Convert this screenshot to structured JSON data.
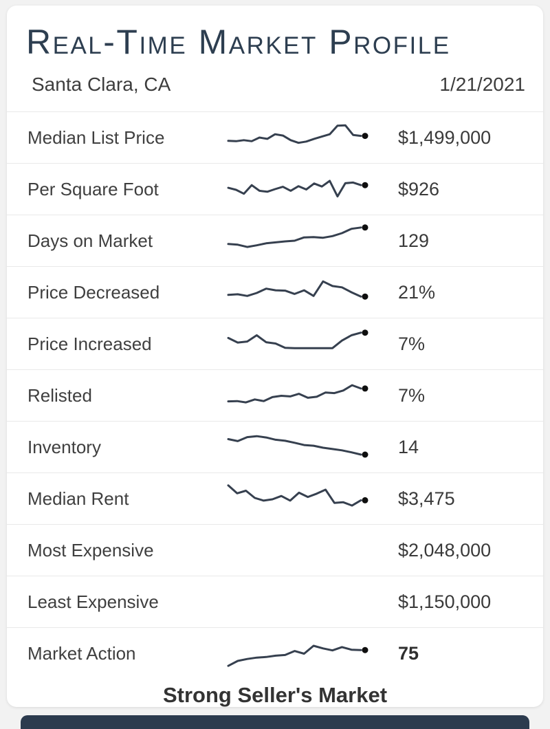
{
  "colors": {
    "page_background": "#f2f2f2",
    "card_background": "#ffffff",
    "title_text": "#2d3e50",
    "label_text": "#3f3f3f",
    "value_text": "#3a3a3a",
    "divider": "#e9e9e9",
    "sparkline_stroke": "#36404f",
    "sparkline_dot": "#0f0f0f",
    "bottom_bar": "#2c3b4e"
  },
  "chart_data": {
    "type": "table",
    "title": "Real-Time Market Profile",
    "location": "Santa Clara, CA",
    "date": "1/21/2021",
    "footer": "Strong Seller's Market",
    "sparkline_note": "sparkline values are normalized 0-100, 0 = top of mini-chart, rightmost point marked with dot",
    "rows": [
      {
        "label": "Median List Price",
        "value": "$1,499,000",
        "emphasis": false,
        "sparkline": [
          60,
          61,
          58,
          61,
          50,
          54,
          40,
          44,
          58,
          66,
          62,
          54,
          47,
          40,
          14,
          13,
          42,
          45
        ]
      },
      {
        "label": "Per Square Foot",
        "value": "$926",
        "emphasis": false,
        "sparkline": [
          46,
          52,
          64,
          38,
          55,
          58,
          50,
          43,
          55,
          41,
          51,
          33,
          42,
          25,
          72,
          32,
          30,
          38
        ]
      },
      {
        "label": "Days on Market",
        "value": "129",
        "emphasis": false,
        "sparkline": [
          60,
          62,
          69,
          64,
          58,
          55,
          52,
          50,
          40,
          39,
          41,
          36,
          27,
          14,
          10
        ]
      },
      {
        "label": "Price Decreased",
        "value": "21%",
        "emphasis": false,
        "sparkline": [
          58,
          56,
          61,
          52,
          39,
          44,
          45,
          55,
          44,
          61,
          17,
          31,
          35,
          50,
          63
        ]
      },
      {
        "label": "Price Increased",
        "value": "7%",
        "emphasis": false,
        "sparkline": [
          32,
          46,
          43,
          24,
          45,
          49,
          62,
          63,
          63,
          63,
          63,
          63,
          40,
          24,
          16
        ]
      },
      {
        "label": "Relisted",
        "value": "7%",
        "emphasis": false,
        "sparkline": [
          68,
          67,
          71,
          62,
          67,
          55,
          51,
          53,
          45,
          57,
          54,
          41,
          43,
          35,
          19,
          29
        ]
      },
      {
        "label": "Inventory",
        "value": "14",
        "emphasis": false,
        "sparkline": [
          26,
          32,
          20,
          17,
          21,
          28,
          31,
          37,
          44,
          46,
          52,
          56,
          60,
          66,
          73
        ]
      },
      {
        "label": "Median Rent",
        "value": "$3,475",
        "emphasis": false,
        "sparkline": [
          10,
          34,
          26,
          48,
          56,
          52,
          42,
          56,
          32,
          45,
          35,
          23,
          63,
          61,
          71,
          55
        ]
      },
      {
        "label": "Most Expensive",
        "value": "$2,048,000",
        "emphasis": false,
        "sparkline": null
      },
      {
        "label": "Least Expensive",
        "value": "$1,150,000",
        "emphasis": false,
        "sparkline": null
      },
      {
        "label": "Market Action",
        "value": "75",
        "emphasis": true,
        "sparkline": [
          88,
          73,
          67,
          63,
          61,
          57,
          55,
          43,
          51,
          27,
          35,
          41,
          31,
          39,
          40
        ]
      }
    ]
  }
}
